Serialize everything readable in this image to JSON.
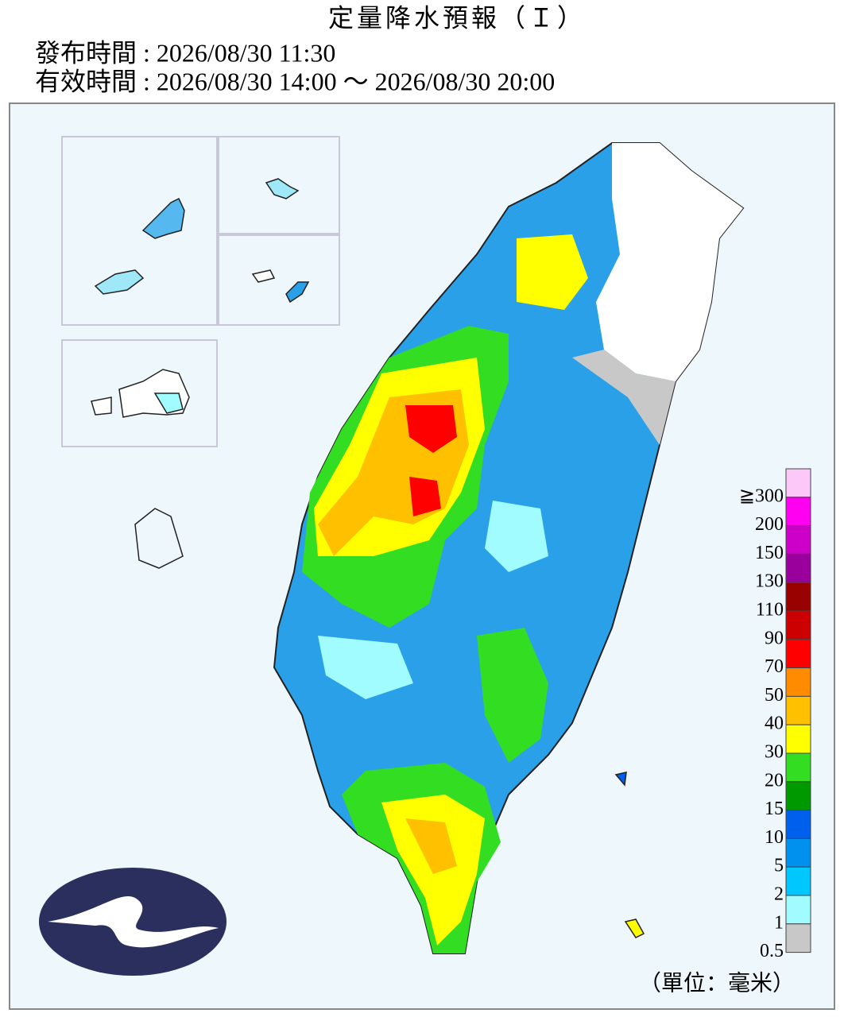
{
  "header": {
    "title": "定量降水預報（Ｉ）",
    "issued": "發布時間 : 2026/08/30 11:30",
    "valid": "有效時間 : 2026/08/30 14:00 ～ 2026/08/30 20:00"
  },
  "legend": {
    "labels": [
      "≧300",
      "200",
      "150",
      "130",
      "110",
      "90",
      "70",
      "50",
      "40",
      "30",
      "20",
      "15",
      "10",
      "5",
      "2",
      "1",
      "0.5"
    ],
    "colors": [
      "#fcc8f8",
      "#ff00f0",
      "#cc00c8",
      "#99009c",
      "#990000",
      "#cc0000",
      "#ff0000",
      "#ff8c00",
      "#ffc000",
      "#ffff00",
      "#33dd22",
      "#009900",
      "#0060ee",
      "#0090ee",
      "#00c8ff",
      "#a0fcff",
      "#c8c8c8"
    ],
    "unit": "（單位：毫米）"
  }
}
